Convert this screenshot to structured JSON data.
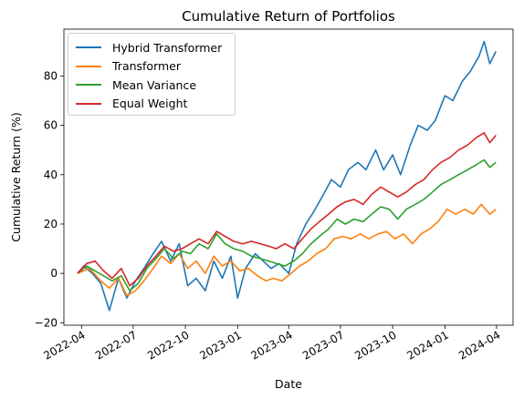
{
  "chart_data": {
    "type": "line",
    "title": "Cumulative Return of Portfolios",
    "xlabel": "Date",
    "ylabel": "Cumulative Return (%)",
    "x_axis_type": "date",
    "xlim": [
      "2022-03-01",
      "2024-04-30"
    ],
    "ylim": [
      -21,
      99
    ],
    "x_ticks": [
      "2022-04",
      "2022-07",
      "2022-10",
      "2023-01",
      "2023-04",
      "2023-07",
      "2023-10",
      "2024-01",
      "2024-04"
    ],
    "y_ticks": [
      -20,
      0,
      20,
      40,
      60,
      80
    ],
    "grid": false,
    "legend_position": "upper-left",
    "series": [
      {
        "name": "Hybrid Transformer",
        "color": "#1f77b4",
        "points": [
          [
            "2022-03-25",
            0
          ],
          [
            "2022-04-05",
            3
          ],
          [
            "2022-04-20",
            0
          ],
          [
            "2022-05-05",
            -4
          ],
          [
            "2022-05-20",
            -15
          ],
          [
            "2022-06-05",
            -2
          ],
          [
            "2022-06-20",
            -10
          ],
          [
            "2022-07-05",
            -3
          ],
          [
            "2022-07-20",
            2
          ],
          [
            "2022-08-05",
            8
          ],
          [
            "2022-08-20",
            13
          ],
          [
            "2022-09-05",
            5
          ],
          [
            "2022-09-20",
            12
          ],
          [
            "2022-10-05",
            -5
          ],
          [
            "2022-10-20",
            -2
          ],
          [
            "2022-11-05",
            -7
          ],
          [
            "2022-11-20",
            5
          ],
          [
            "2022-12-05",
            -2
          ],
          [
            "2022-12-20",
            7
          ],
          [
            "2023-01-01",
            -10
          ],
          [
            "2023-01-15",
            2
          ],
          [
            "2023-02-01",
            8
          ],
          [
            "2023-02-15",
            5
          ],
          [
            "2023-03-01",
            2
          ],
          [
            "2023-03-15",
            4
          ],
          [
            "2023-04-01",
            0
          ],
          [
            "2023-04-15",
            12
          ],
          [
            "2023-05-01",
            20
          ],
          [
            "2023-05-15",
            25
          ],
          [
            "2023-06-01",
            32
          ],
          [
            "2023-06-15",
            38
          ],
          [
            "2023-07-01",
            35
          ],
          [
            "2023-07-15",
            42
          ],
          [
            "2023-08-01",
            45
          ],
          [
            "2023-08-15",
            42
          ],
          [
            "2023-09-01",
            50
          ],
          [
            "2023-09-15",
            42
          ],
          [
            "2023-10-01",
            48
          ],
          [
            "2023-10-15",
            40
          ],
          [
            "2023-11-01",
            52
          ],
          [
            "2023-11-15",
            60
          ],
          [
            "2023-12-01",
            58
          ],
          [
            "2023-12-15",
            62
          ],
          [
            "2024-01-01",
            72
          ],
          [
            "2024-01-15",
            70
          ],
          [
            "2024-02-01",
            78
          ],
          [
            "2024-02-15",
            82
          ],
          [
            "2024-03-01",
            88
          ],
          [
            "2024-03-10",
            94
          ],
          [
            "2024-03-20",
            85
          ],
          [
            "2024-03-31",
            90
          ]
        ]
      },
      {
        "name": "Transformer",
        "color": "#ff7f0e",
        "points": [
          [
            "2022-03-25",
            0
          ],
          [
            "2022-04-15",
            2
          ],
          [
            "2022-05-05",
            -3
          ],
          [
            "2022-05-20",
            -6
          ],
          [
            "2022-06-05",
            -2
          ],
          [
            "2022-06-20",
            -9
          ],
          [
            "2022-07-05",
            -7
          ],
          [
            "2022-07-20",
            -3
          ],
          [
            "2022-08-05",
            2
          ],
          [
            "2022-08-20",
            7
          ],
          [
            "2022-09-05",
            4
          ],
          [
            "2022-09-20",
            8
          ],
          [
            "2022-10-05",
            2
          ],
          [
            "2022-10-20",
            5
          ],
          [
            "2022-11-05",
            0
          ],
          [
            "2022-11-20",
            7
          ],
          [
            "2022-12-05",
            3
          ],
          [
            "2022-12-20",
            5
          ],
          [
            "2023-01-05",
            1
          ],
          [
            "2023-01-20",
            2
          ],
          [
            "2023-02-05",
            -1
          ],
          [
            "2023-02-20",
            -3
          ],
          [
            "2023-03-05",
            -2
          ],
          [
            "2023-03-20",
            -3
          ],
          [
            "2023-04-05",
            0
          ],
          [
            "2023-04-20",
            3
          ],
          [
            "2023-05-05",
            5
          ],
          [
            "2023-05-20",
            8
          ],
          [
            "2023-06-05",
            10
          ],
          [
            "2023-06-20",
            14
          ],
          [
            "2023-07-05",
            15
          ],
          [
            "2023-07-20",
            14
          ],
          [
            "2023-08-05",
            16
          ],
          [
            "2023-08-20",
            14
          ],
          [
            "2023-09-05",
            16
          ],
          [
            "2023-09-20",
            17
          ],
          [
            "2023-10-05",
            14
          ],
          [
            "2023-10-20",
            16
          ],
          [
            "2023-11-05",
            12
          ],
          [
            "2023-11-20",
            16
          ],
          [
            "2023-12-05",
            18
          ],
          [
            "2023-12-20",
            21
          ],
          [
            "2024-01-05",
            26
          ],
          [
            "2024-01-20",
            24
          ],
          [
            "2024-02-05",
            26
          ],
          [
            "2024-02-20",
            24
          ],
          [
            "2024-03-05",
            28
          ],
          [
            "2024-03-20",
            24
          ],
          [
            "2024-03-31",
            26
          ]
        ]
      },
      {
        "name": "Mean Variance",
        "color": "#2ca02c",
        "points": [
          [
            "2022-03-25",
            0
          ],
          [
            "2022-04-10",
            3
          ],
          [
            "2022-04-25",
            1
          ],
          [
            "2022-05-10",
            -1
          ],
          [
            "2022-05-25",
            -3
          ],
          [
            "2022-06-10",
            -1
          ],
          [
            "2022-06-25",
            -7
          ],
          [
            "2022-07-10",
            -4
          ],
          [
            "2022-07-25",
            2
          ],
          [
            "2022-08-10",
            6
          ],
          [
            "2022-08-25",
            10
          ],
          [
            "2022-09-10",
            6
          ],
          [
            "2022-09-25",
            9
          ],
          [
            "2022-10-10",
            8
          ],
          [
            "2022-10-25",
            12
          ],
          [
            "2022-11-10",
            10
          ],
          [
            "2022-11-25",
            16
          ],
          [
            "2022-12-10",
            12
          ],
          [
            "2022-12-25",
            10
          ],
          [
            "2023-01-10",
            9
          ],
          [
            "2023-01-25",
            7
          ],
          [
            "2023-02-10",
            6
          ],
          [
            "2023-02-25",
            5
          ],
          [
            "2023-03-10",
            4
          ],
          [
            "2023-03-25",
            3
          ],
          [
            "2023-04-10",
            5
          ],
          [
            "2023-04-25",
            8
          ],
          [
            "2023-05-10",
            12
          ],
          [
            "2023-05-25",
            15
          ],
          [
            "2023-06-10",
            18
          ],
          [
            "2023-06-25",
            22
          ],
          [
            "2023-07-10",
            20
          ],
          [
            "2023-07-25",
            22
          ],
          [
            "2023-08-10",
            21
          ],
          [
            "2023-08-25",
            24
          ],
          [
            "2023-09-10",
            27
          ],
          [
            "2023-09-25",
            26
          ],
          [
            "2023-10-10",
            22
          ],
          [
            "2023-10-25",
            26
          ],
          [
            "2023-11-10",
            28
          ],
          [
            "2023-11-25",
            30
          ],
          [
            "2023-12-10",
            33
          ],
          [
            "2023-12-25",
            36
          ],
          [
            "2024-01-10",
            38
          ],
          [
            "2024-01-25",
            40
          ],
          [
            "2024-02-10",
            42
          ],
          [
            "2024-02-25",
            44
          ],
          [
            "2024-03-10",
            46
          ],
          [
            "2024-03-20",
            43
          ],
          [
            "2024-03-31",
            45
          ]
        ]
      },
      {
        "name": "Equal Weight",
        "color": "#d62728",
        "points": [
          [
            "2022-03-25",
            0
          ],
          [
            "2022-04-10",
            4
          ],
          [
            "2022-04-25",
            5
          ],
          [
            "2022-05-10",
            1
          ],
          [
            "2022-05-25",
            -2
          ],
          [
            "2022-06-10",
            2
          ],
          [
            "2022-06-25",
            -5
          ],
          [
            "2022-07-10",
            -2
          ],
          [
            "2022-07-25",
            3
          ],
          [
            "2022-08-10",
            7
          ],
          [
            "2022-08-25",
            11
          ],
          [
            "2022-09-10",
            9
          ],
          [
            "2022-09-25",
            10
          ],
          [
            "2022-10-10",
            12
          ],
          [
            "2022-10-25",
            14
          ],
          [
            "2022-11-10",
            12
          ],
          [
            "2022-11-25",
            17
          ],
          [
            "2022-12-10",
            15
          ],
          [
            "2022-12-25",
            13
          ],
          [
            "2023-01-10",
            12
          ],
          [
            "2023-01-25",
            13
          ],
          [
            "2023-02-10",
            12
          ],
          [
            "2023-02-25",
            11
          ],
          [
            "2023-03-10",
            10
          ],
          [
            "2023-03-25",
            12
          ],
          [
            "2023-04-10",
            10
          ],
          [
            "2023-04-25",
            14
          ],
          [
            "2023-05-10",
            18
          ],
          [
            "2023-05-25",
            21
          ],
          [
            "2023-06-10",
            24
          ],
          [
            "2023-06-25",
            27
          ],
          [
            "2023-07-10",
            29
          ],
          [
            "2023-07-25",
            30
          ],
          [
            "2023-08-10",
            28
          ],
          [
            "2023-08-25",
            32
          ],
          [
            "2023-09-10",
            35
          ],
          [
            "2023-09-25",
            33
          ],
          [
            "2023-10-10",
            31
          ],
          [
            "2023-10-25",
            33
          ],
          [
            "2023-11-10",
            36
          ],
          [
            "2023-11-25",
            38
          ],
          [
            "2023-12-10",
            42
          ],
          [
            "2023-12-25",
            45
          ],
          [
            "2024-01-10",
            47
          ],
          [
            "2024-01-25",
            50
          ],
          [
            "2024-02-10",
            52
          ],
          [
            "2024-02-25",
            55
          ],
          [
            "2024-03-10",
            57
          ],
          [
            "2024-03-20",
            53
          ],
          [
            "2024-03-31",
            56
          ]
        ]
      }
    ]
  }
}
